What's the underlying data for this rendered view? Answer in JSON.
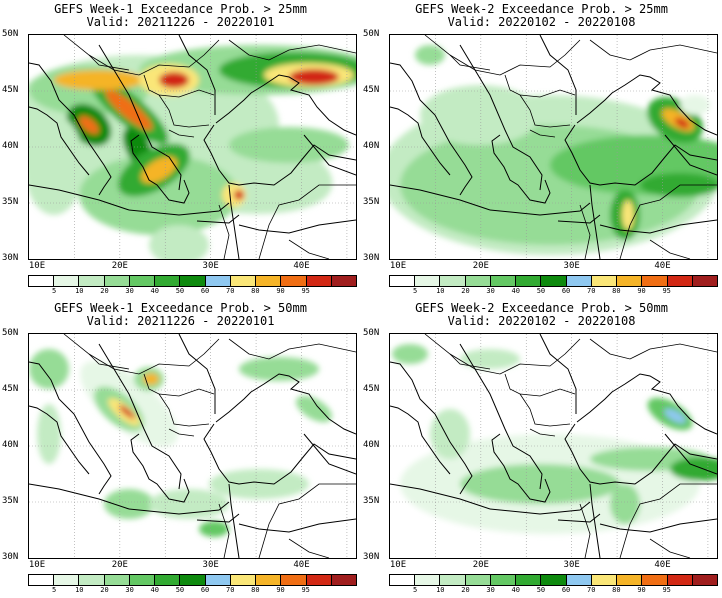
{
  "panels": [
    {
      "title": "GEFS Week-1 Exceedance Prob. > 25mm",
      "valid": "Valid: 20211226 - 20220101",
      "variant": "w1_25"
    },
    {
      "title": "GEFS Week-2 Exceedance Prob. > 25mm",
      "valid": "Valid: 20220102 - 20220108",
      "variant": "w2_25"
    },
    {
      "title": "GEFS Week-1 Exceedance Prob. > 50mm",
      "valid": "Valid: 20211226 - 20220101",
      "variant": "w1_50"
    },
    {
      "title": "GEFS Week-2 Exceedance Prob. > 50mm",
      "valid": "Valid: 20220102 - 20220108",
      "variant": "w2_50"
    }
  ],
  "lat_labels": [
    "50N",
    "45N",
    "40N",
    "35N",
    "30N"
  ],
  "lon_labels": [
    "10E",
    "20E",
    "30E",
    "40E"
  ],
  "colorbar": {
    "labels": [
      "5",
      "10",
      "20",
      "30",
      "40",
      "50",
      "60",
      "70",
      "80",
      "90",
      "95"
    ],
    "colors": [
      "#ffffff",
      "#e6f7e6",
      "#c3ebc3",
      "#96dc96",
      "#64c864",
      "#32aa32",
      "#0e8a0e",
      "#8fc8f0",
      "#fae678",
      "#f5b428",
      "#f06e14",
      "#d22814",
      "#a01e1e"
    ]
  }
}
